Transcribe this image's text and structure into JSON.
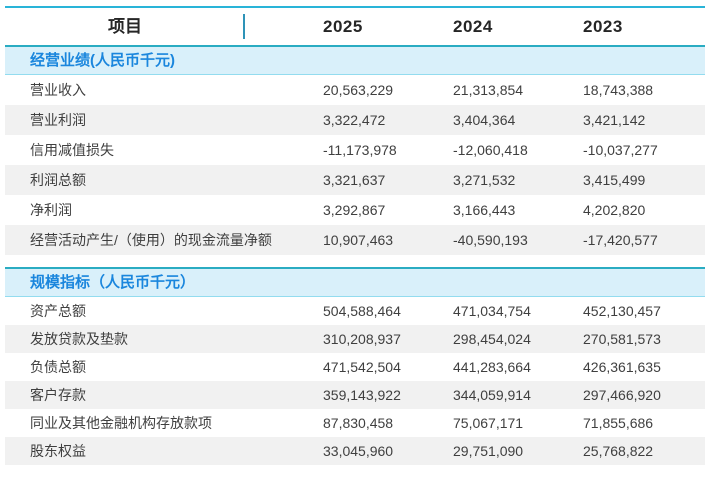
{
  "colors": {
    "top_border": "#29b4d8",
    "separator_line": "#2aacc2",
    "header_divider": "#2e93b8",
    "section_header_bg": "#d9f0fa",
    "section_header_border": "#93dcef",
    "section_title_text": "#1a86dd",
    "row_stripe": "#f1f1f1",
    "body_text": "#3f3f3f",
    "header_text": "#262626"
  },
  "chart_data": {
    "type": "table",
    "header": {
      "item_label": "项目",
      "years": [
        "2025",
        "2024",
        "2023"
      ]
    },
    "sections": [
      {
        "title": "经营业绩(人民币千元)",
        "rows": [
          {
            "label": "营业收入",
            "values": [
              "20,563,229",
              "21,313,854",
              "18,743,388"
            ]
          },
          {
            "label": "营业利润",
            "values": [
              "3,322,472",
              "3,404,364",
              "3,421,142"
            ]
          },
          {
            "label": "信用减值损失",
            "values": [
              "-11,173,978",
              "-12,060,418",
              "-10,037,277"
            ]
          },
          {
            "label": "利润总额",
            "values": [
              "3,321,637",
              "3,271,532",
              "3,415,499"
            ]
          },
          {
            "label": "净利润",
            "values": [
              "3,292,867",
              "3,166,443",
              "4,202,820"
            ]
          },
          {
            "label": "经营活动产生/（使用）的现金流量净额",
            "values": [
              "10,907,463",
              "-40,590,193",
              "-17,420,577"
            ]
          }
        ]
      },
      {
        "title": "规模指标（人民币千元）",
        "rows": [
          {
            "label": "资产总额",
            "values": [
              "504,588,464",
              "471,034,754",
              "452,130,457"
            ]
          },
          {
            "label": "发放贷款及垫款",
            "values": [
              "310,208,937",
              "298,454,024",
              "270,581,573"
            ]
          },
          {
            "label": "负债总额",
            "values": [
              "471,542,504",
              "441,283,664",
              "426,361,635"
            ]
          },
          {
            "label": "客户存款",
            "values": [
              "359,143,922",
              "344,059,914",
              "297,466,920"
            ]
          },
          {
            "label": "同业及其他金融机构存放款项",
            "values": [
              "87,830,458",
              "75,067,171",
              "71,855,686"
            ]
          },
          {
            "label": "股东权益",
            "values": [
              "33,045,960",
              "29,751,090",
              "25,768,822"
            ]
          }
        ]
      }
    ]
  }
}
